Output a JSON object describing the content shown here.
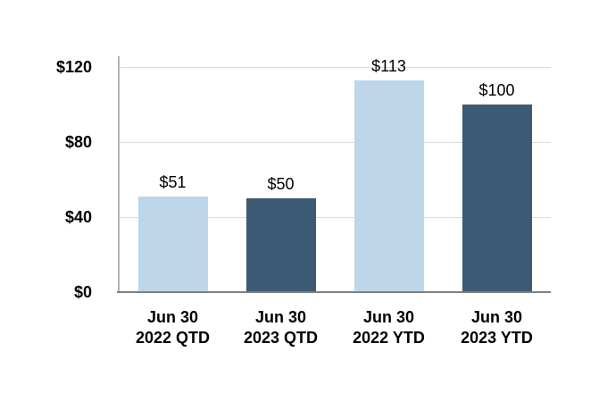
{
  "chart_data": {
    "type": "bar",
    "title": "",
    "xlabel": "",
    "ylabel": "",
    "ylim": [
      0,
      120
    ],
    "grid": true,
    "legend": "none",
    "currency_prefix": "$",
    "categories": [
      "Jun 30\n2022 QTD",
      "Jun 30\n2023 QTD",
      "Jun 30\n2022 YTD",
      "Jun 30\n2023 YTD"
    ],
    "values": [
      51,
      50,
      113,
      100
    ],
    "value_labels": [
      "$51",
      "$50",
      "$113",
      "$100"
    ],
    "bar_colors": [
      "#bdd6ea",
      "#3d5a74",
      "#bdd6ea",
      "#3d5a74"
    ],
    "y_ticks": [
      {
        "value": 0,
        "label": "$0"
      },
      {
        "value": 40,
        "label": "$40"
      },
      {
        "value": 80,
        "label": "$80"
      },
      {
        "value": 120,
        "label": "$120"
      }
    ],
    "colors": {
      "bar_light": "#bdd6ea",
      "bar_dark": "#3d5a74",
      "gridline": "#dcdcdc",
      "axis_line": "#b4b4b4",
      "baseline": "#808080",
      "text": "#000000",
      "background": "#ffffff"
    }
  }
}
